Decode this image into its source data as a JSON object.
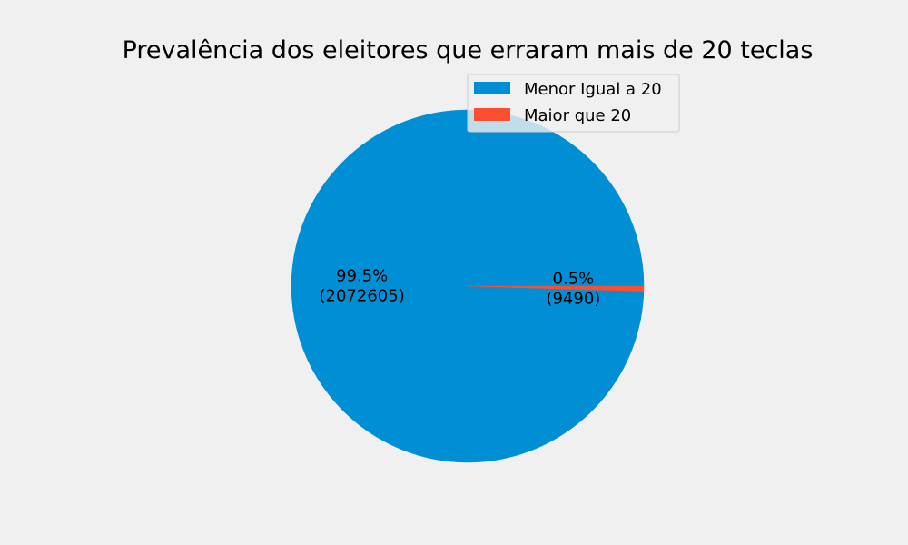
{
  "chart_data": {
    "type": "pie",
    "title": "Prevalência dos eleitores que erraram mais de 20 teclas",
    "categories": [
      "Menor Igual a 20",
      "Maior que 20"
    ],
    "values": [
      2072605,
      9490
    ],
    "percent_labels": [
      "99.5%",
      "0.5%"
    ],
    "count_labels": [
      "(2072605)",
      "(9490)"
    ],
    "colors": [
      "#008fd5",
      "#fc4f30"
    ],
    "start_angle_deg": 0,
    "direction": "counterclockwise",
    "legend": "upper-right"
  }
}
